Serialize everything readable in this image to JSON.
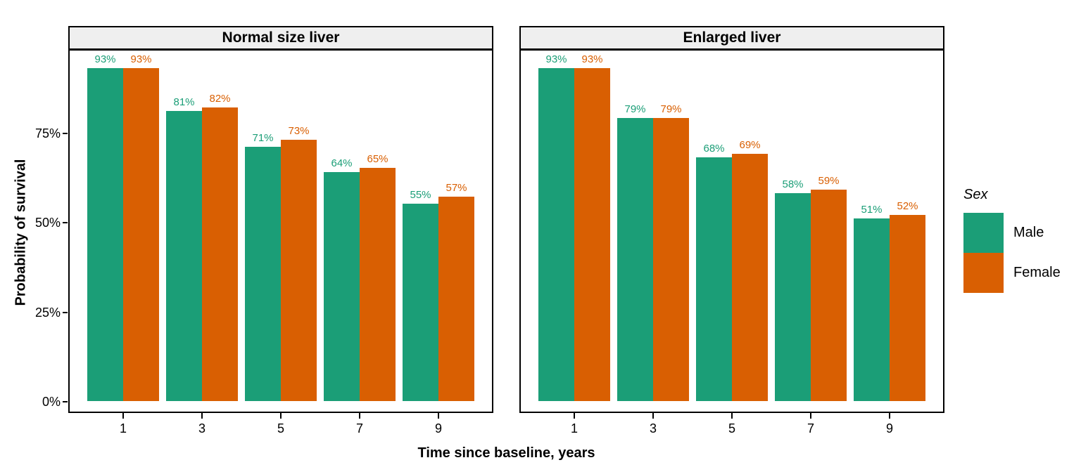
{
  "chart_data": {
    "type": "bar",
    "grid": false,
    "legend_position": "right",
    "xlabel": "Time since baseline, years",
    "ylabel": "Probability of survival",
    "ylim": [
      0,
      100
    ],
    "y_axis": {
      "ticks": [
        {
          "value": 0,
          "label": "0%"
        },
        {
          "value": 25,
          "label": "25%"
        },
        {
          "value": 50,
          "label": "50%"
        },
        {
          "value": 75,
          "label": "75%"
        }
      ]
    },
    "facets": [
      {
        "title": "Normal size liver",
        "categories": [
          "1",
          "3",
          "5",
          "7",
          "9"
        ],
        "series": [
          {
            "name": "Male",
            "color": "#1B9E77",
            "values": [
              93,
              81,
              71,
              64,
              55
            ],
            "labels": [
              "93%",
              "81%",
              "71%",
              "64%",
              "55%"
            ]
          },
          {
            "name": "Female",
            "color": "#D95F02",
            "values": [
              93,
              82,
              73,
              65,
              57
            ],
            "labels": [
              "93%",
              "82%",
              "73%",
              "65%",
              "57%"
            ]
          }
        ]
      },
      {
        "title": "Enlarged liver",
        "categories": [
          "1",
          "3",
          "5",
          "7",
          "9"
        ],
        "series": [
          {
            "name": "Male",
            "color": "#1B9E77",
            "values": [
              93,
              79,
              68,
              58,
              51
            ],
            "labels": [
              "93%",
              "79%",
              "68%",
              "58%",
              "51%"
            ]
          },
          {
            "name": "Female",
            "color": "#D95F02",
            "values": [
              93,
              79,
              69,
              59,
              52
            ],
            "labels": [
              "93%",
              "79%",
              "69%",
              "59%",
              "52%"
            ]
          }
        ]
      }
    ],
    "legend": {
      "title": "Sex",
      "entries": [
        {
          "label": "Male",
          "color": "#1B9E77"
        },
        {
          "label": "Female",
          "color": "#D95F02"
        }
      ]
    },
    "style": {
      "strip_background": "#EFEFEF",
      "panel_border": "#000000",
      "male_color": "#1B9E77",
      "female_color": "#D95F02"
    }
  }
}
